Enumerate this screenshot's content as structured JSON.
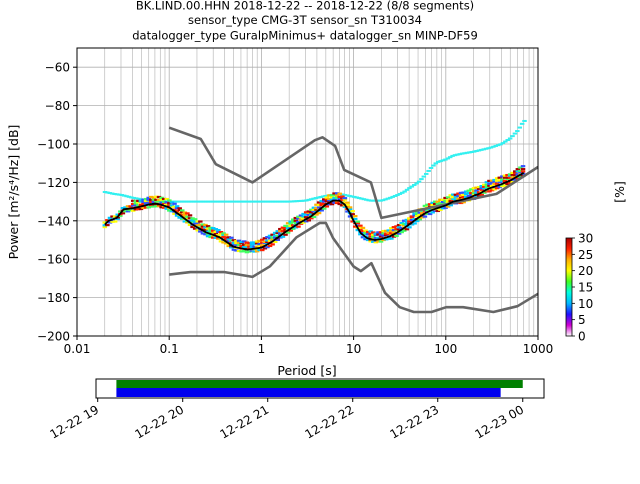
{
  "title_lines": [
    "BK.LIND.00.HHN   2018-12-22 -- 2018-12-22  (8/8 segments)",
    "sensor_type CMG-3T sensor_sn T310034",
    "datalogger_type GuralpMinimus+ datalogger_sn MINP-DF59"
  ],
  "chart_data": {
    "type": "heatmap",
    "xlabel": "Period [s]",
    "ylabel": "Power [m²/s⁴/Hz] [dB]",
    "xscale": "log",
    "xlim": [
      0.01,
      1000
    ],
    "ylim": [
      -200,
      -50
    ],
    "x_ticks": [
      0.01,
      0.1,
      1,
      10,
      100,
      1000
    ],
    "x_tick_labels": [
      "0.01",
      "0.1",
      "1",
      "10",
      "100",
      "1000"
    ],
    "y_ticks": [
      -200,
      -180,
      -160,
      -140,
      -120,
      -100,
      -80,
      -60
    ],
    "y_tick_labels": [
      "−200",
      "−180",
      "−160",
      "−140",
      "−120",
      "−100",
      "−80",
      "−60"
    ],
    "grid": true,
    "nhnm": {
      "name": "NHNM",
      "color": "#666666",
      "x": [
        0.1,
        0.22,
        0.32,
        0.8,
        3.8,
        4.6,
        6.3,
        7.9,
        15.4,
        20,
        354.8,
        1000
      ],
      "y": [
        -91.5,
        -97.4,
        -110.5,
        -120,
        -98,
        -96.5,
        -101,
        -113.5,
        -120,
        -138.5,
        -126,
        -112
      ]
    },
    "nlnm": {
      "name": "NLNM",
      "color": "#666666",
      "x": [
        0.1,
        0.17,
        0.4,
        0.8,
        1.24,
        2.4,
        4.3,
        5,
        6,
        10,
        12,
        15.6,
        21.9,
        31.6,
        45,
        70,
        101,
        154,
        328,
        600,
        1000
      ],
      "y": [
        -168,
        -166.7,
        -166.7,
        -169.2,
        -163.7,
        -148.6,
        -141.1,
        -141.1,
        -149,
        -163.8,
        -166.2,
        -162.1,
        -177.5,
        -185,
        -187.5,
        -187.5,
        -185,
        -185,
        -187.5,
        -184.5,
        -178
      ]
    },
    "mode_line": {
      "name": "mode",
      "color": "#000000",
      "x": [
        0.02,
        0.022,
        0.027,
        0.032,
        0.04,
        0.05,
        0.06,
        0.07,
        0.08,
        0.1,
        0.13,
        0.18,
        0.25,
        0.35,
        0.5,
        0.7,
        1.0,
        1.3,
        1.8,
        2.5,
        3.5,
        5,
        6,
        7,
        8,
        9,
        10,
        12,
        14,
        17,
        20,
        25,
        30,
        40,
        50,
        60,
        70,
        80,
        100,
        120,
        150,
        180,
        200,
        230,
        270,
        300,
        400,
        500,
        700
      ],
      "y": [
        -142,
        -140,
        -138.5,
        -134,
        -133.5,
        -132.5,
        -131.5,
        -131,
        -131.5,
        -133,
        -137,
        -142,
        -146,
        -148.5,
        -153.5,
        -155,
        -154,
        -151,
        -146,
        -141.5,
        -137.5,
        -131.5,
        -129.5,
        -129.5,
        -131.5,
        -135.5,
        -140,
        -146.5,
        -149,
        -150,
        -149.5,
        -148,
        -146,
        -142,
        -138.5,
        -136,
        -134.5,
        -133.5,
        -132,
        -130,
        -129,
        -128,
        -127,
        -126,
        -124,
        -123,
        -121,
        -119,
        -115
      ]
    },
    "cyan_band": {
      "x": [
        0.02,
        0.025,
        0.03,
        0.04,
        0.06,
        0.1,
        0.2,
        0.5,
        1,
        2,
        3,
        4,
        5,
        7,
        10,
        15,
        20,
        25,
        30,
        35,
        40,
        50,
        60,
        70,
        80,
        100,
        120,
        150,
        200,
        300,
        400,
        500,
        600,
        700
      ],
      "y": [
        -125,
        -126,
        -126.5,
        -128,
        -129.5,
        -130,
        -130,
        -130,
        -130,
        -130,
        -129.5,
        -128,
        -127,
        -126,
        -127.5,
        -129.5,
        -129.5,
        -128,
        -126.5,
        -125,
        -123,
        -120,
        -116,
        -112,
        -109.5,
        -108,
        -106,
        -105,
        -104,
        -102,
        -100,
        -97,
        -93,
        -88
      ]
    },
    "colorbar": {
      "label": "[%]",
      "min": 0,
      "max": 30,
      "ticks": [
        0,
        5,
        10,
        15,
        20,
        25,
        30
      ],
      "colors": [
        "#ffffff",
        "#d000d0",
        "#1e10ff",
        "#00b8ff",
        "#00ffe0",
        "#40ff20",
        "#ffff00",
        "#ffb000",
        "#ff2000",
        "#aa0000"
      ]
    },
    "timeline": {
      "tick_labels": [
        "12-22 19",
        "12-22 20",
        "12-22 21",
        "12-22 22",
        "12-22 23",
        "12-23 00"
      ],
      "tick_hours": [
        19,
        20,
        21,
        22,
        23,
        24
      ],
      "range_hours": [
        18.98,
        24.25
      ],
      "green_bar": [
        19.22,
        24
      ],
      "blue_bar": [
        19.22,
        23.74
      ],
      "green_color": "#008000",
      "blue_color": "#0000ee"
    }
  }
}
